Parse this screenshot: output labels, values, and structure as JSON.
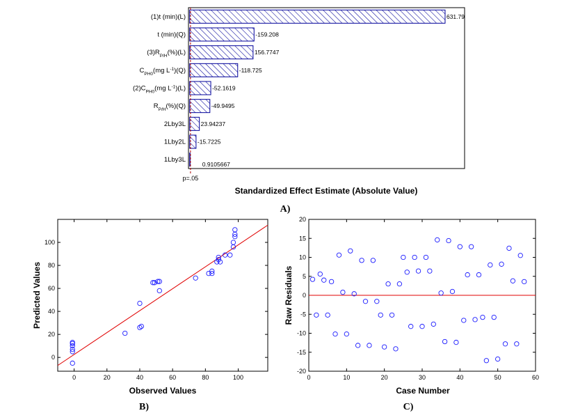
{
  "chart_data": [
    {
      "type": "bar",
      "orientation": "horizontal",
      "panel_label": "A)",
      "xlabel": "Standardized Effect Estimate (Absolute Value)",
      "categories": [
        {
          "parts": [
            {
              "t": "(1)t (min)(L)"
            }
          ]
        },
        {
          "parts": [
            {
              "t": "t (min)(Q)"
            }
          ]
        },
        {
          "parts": [
            {
              "t": "(3)R"
            },
            {
              "t": "P/H",
              "sub": true
            },
            {
              "t": "(%)(L)"
            }
          ]
        },
        {
          "parts": [
            {
              "t": "C"
            },
            {
              "t": "PH0",
              "sub": true
            },
            {
              "t": "(mg L"
            },
            {
              "t": "-1",
              "sup": true
            },
            {
              "t": ")(Q)"
            }
          ]
        },
        {
          "parts": [
            {
              "t": "(2)C"
            },
            {
              "t": "PH0",
              "sub": true
            },
            {
              "t": "(mg L"
            },
            {
              "t": "-1",
              "sup": true
            },
            {
              "t": ")(L)"
            }
          ]
        },
        {
          "parts": [
            {
              "t": "R"
            },
            {
              "t": "P/H",
              "sub": true
            },
            {
              "t": "(%)(Q)"
            }
          ]
        },
        {
          "parts": [
            {
              "t": "2Lby3L"
            }
          ]
        },
        {
          "parts": [
            {
              "t": "1Lby2L"
            }
          ]
        },
        {
          "parts": [
            {
              "t": "1Lby3L"
            }
          ]
        }
      ],
      "values": [
        631.79,
        159.208,
        156.7747,
        118.725,
        52.1619,
        49.9495,
        23.94237,
        15.7225,
        0.9105667
      ],
      "value_labels": [
        "631.79",
        "-159.208",
        "156.7747",
        "-118.725",
        "-52.1619",
        "-49.9495",
        "23.94237",
        "-15.7225",
        "0.9105667"
      ],
      "reference_line": {
        "value": 1.96,
        "label": "p=.05"
      },
      "xlim": [
        -3,
        680
      ],
      "grid": false
    },
    {
      "type": "scatter",
      "panel_label": "B)",
      "xlabel": "Observed Values",
      "ylabel": "Predicted Values",
      "xlim": [
        -10,
        118
      ],
      "ylim": [
        -12,
        120
      ],
      "xticks": [
        0,
        20,
        40,
        60,
        80,
        100
      ],
      "yticks": [
        0,
        20,
        40,
        60,
        80,
        100
      ],
      "points": [
        [
          -1,
          -5
        ],
        [
          -1,
          5
        ],
        [
          -1,
          7
        ],
        [
          -1,
          10
        ],
        [
          -1,
          12
        ],
        [
          -1,
          13
        ],
        [
          31,
          21
        ],
        [
          40,
          47
        ],
        [
          40,
          26
        ],
        [
          41,
          27
        ],
        [
          48,
          65
        ],
        [
          49,
          65
        ],
        [
          51,
          66
        ],
        [
          52,
          66
        ],
        [
          52,
          58
        ],
        [
          74,
          69
        ],
        [
          82,
          73
        ],
        [
          84,
          73
        ],
        [
          84,
          75
        ],
        [
          87,
          83
        ],
        [
          88,
          85
        ],
        [
          88,
          87
        ],
        [
          89,
          83
        ],
        [
          92,
          89
        ],
        [
          95,
          89
        ],
        [
          97,
          96
        ],
        [
          97,
          100
        ],
        [
          98,
          105
        ],
        [
          98,
          107
        ],
        [
          98,
          111
        ]
      ],
      "fit_line": [
        [
          -10,
          -7
        ],
        [
          118,
          115
        ]
      ],
      "grid": false
    },
    {
      "type": "scatter",
      "panel_label": "C)",
      "xlabel": "Case Number",
      "ylabel": "Raw Residuals",
      "xlim": [
        0,
        60
      ],
      "ylim": [
        -20,
        20
      ],
      "xticks": [
        0,
        10,
        20,
        30,
        40,
        50,
        60
      ],
      "yticks": [
        -20,
        -15,
        -10,
        -5,
        0,
        5,
        10,
        15,
        20
      ],
      "points": [
        [
          1,
          4.2
        ],
        [
          2,
          -5.2
        ],
        [
          3,
          5.6
        ],
        [
          4,
          4.0
        ],
        [
          5,
          -5.2
        ],
        [
          6,
          3.6
        ],
        [
          7,
          -10.2
        ],
        [
          8,
          10.6
        ],
        [
          9,
          0.8
        ],
        [
          10,
          -10.2
        ],
        [
          11,
          11.7
        ],
        [
          12,
          0.4
        ],
        [
          13,
          -13.2
        ],
        [
          14,
          9.2
        ],
        [
          15,
          -1.6
        ],
        [
          16,
          -13.2
        ],
        [
          17,
          9.2
        ],
        [
          18,
          -1.6
        ],
        [
          19,
          -5.2
        ],
        [
          20,
          -13.6
        ],
        [
          21,
          3.0
        ],
        [
          22,
          -5.2
        ],
        [
          23,
          -14.1
        ],
        [
          24,
          3.0
        ],
        [
          25,
          10.0
        ],
        [
          26,
          6.1
        ],
        [
          27,
          -8.2
        ],
        [
          28,
          10.0
        ],
        [
          29,
          6.4
        ],
        [
          30,
          -8.2
        ],
        [
          31,
          10.0
        ],
        [
          32,
          6.4
        ],
        [
          33,
          -7.6
        ],
        [
          34,
          14.6
        ],
        [
          35,
          0.6
        ],
        [
          36,
          -12.2
        ],
        [
          37,
          14.4
        ],
        [
          38,
          1.0
        ],
        [
          39,
          -12.4
        ],
        [
          40,
          12.8
        ],
        [
          41,
          -6.6
        ],
        [
          42,
          5.4
        ],
        [
          43,
          12.8
        ],
        [
          44,
          -6.4
        ],
        [
          45,
          5.4
        ],
        [
          46,
          -5.8
        ],
        [
          47,
          -17.2
        ],
        [
          48,
          8.0
        ],
        [
          49,
          -5.8
        ],
        [
          50,
          -16.8
        ],
        [
          51,
          8.2
        ],
        [
          52,
          -12.8
        ],
        [
          53,
          12.4
        ],
        [
          54,
          3.8
        ],
        [
          55,
          -12.8
        ],
        [
          56,
          10.5
        ],
        [
          57,
          3.6
        ]
      ],
      "reference_line": {
        "value": 0
      },
      "grid": false
    }
  ]
}
